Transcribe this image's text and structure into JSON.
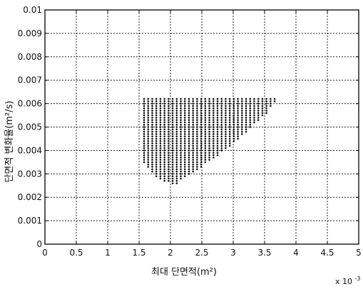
{
  "chart_data": {
    "type": "scatter",
    "title": "",
    "xlabel": "최대 단면적(m²)",
    "ylabel": "단면적 변화율(m²/s)",
    "x_multiplier_base": "x 10",
    "x_multiplier_exp": "-3",
    "xlim": [
      0,
      5
    ],
    "ylim": [
      0,
      0.01
    ],
    "x_ticks": [
      0,
      0.5,
      1,
      1.5,
      2,
      2.5,
      3,
      3.5,
      4,
      4.5,
      5
    ],
    "x_tick_labels": [
      "0",
      "0.5",
      "1",
      "1.5",
      "2",
      "2.5",
      "3",
      "3.5",
      "4",
      "4.5",
      "5"
    ],
    "y_ticks": [
      0,
      0.001,
      0.002,
      0.003,
      0.004,
      0.005,
      0.006,
      0.007,
      0.008,
      0.009,
      0.01
    ],
    "y_tick_labels": [
      "0",
      "0.001",
      "0.002",
      "0.003",
      "0.004",
      "0.005",
      "0.006",
      "0.007",
      "0.008",
      "0.009",
      "0.01"
    ],
    "grid": true,
    "grid_style": "dotted",
    "marker_color": "#000000",
    "series": [
      {
        "region": "triangular point cloud",
        "x_range": [
          1.58,
          3.72
        ],
        "y_range": [
          0.0026,
          0.0062
        ],
        "upper_bound_y": 0.0062,
        "lower_left_boundary": [
          [
            1.58,
            0.0035
          ],
          [
            1.8,
            0.0028
          ],
          [
            2.0,
            0.0026
          ],
          [
            2.1,
            0.0026
          ]
        ],
        "diagonal_boundary": [
          [
            2.1,
            0.0026
          ],
          [
            2.5,
            0.0033
          ],
          [
            3.0,
            0.0043
          ],
          [
            3.5,
            0.0055
          ],
          [
            3.72,
            0.0062
          ]
        ],
        "x_step": 0.065,
        "y_step": 0.0001
      }
    ]
  }
}
